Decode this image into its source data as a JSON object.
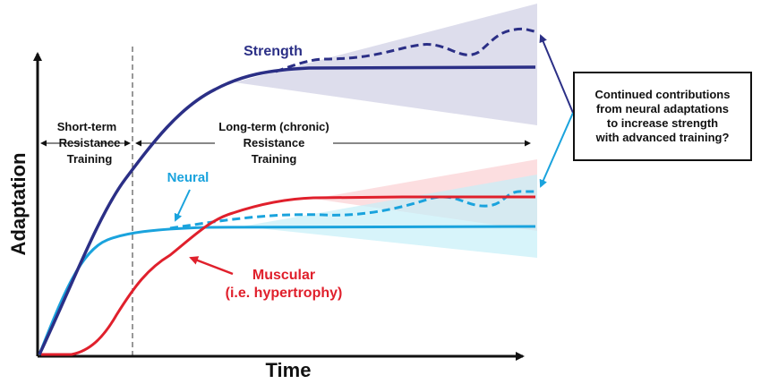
{
  "axes": {
    "y_label": "Adaptation",
    "x_label": "Time"
  },
  "phases": {
    "short_term": [
      "Short-term",
      "Resistance",
      "Training"
    ],
    "long_term": [
      "Long-term (chronic)",
      "Resistance",
      "Training"
    ]
  },
  "curves": {
    "strength": {
      "label": "Strength",
      "color": "#2b2f86"
    },
    "neural": {
      "label": "Neural",
      "color": "#1aa3dd"
    },
    "muscular": {
      "label": "Muscular",
      "sublabel": "(i.e. hypertrophy)",
      "color": "#e0202c"
    }
  },
  "callout": {
    "lines": [
      "Continued contributions",
      "from neural adaptations",
      "to increase strength",
      "with advanced training?"
    ]
  },
  "colors": {
    "axis": "#111111",
    "strength_band": "#d9d9ea",
    "neural_band": "#c6f0f8",
    "muscular_band": "#fbd6d8"
  }
}
